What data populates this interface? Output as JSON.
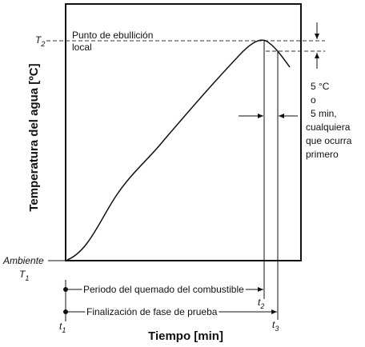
{
  "axis_labels": {
    "y": "Temperatura del agua [ºC]",
    "x": "Tiempo [min]"
  },
  "markers": {
    "t2_temp": {
      "symbol": "T",
      "sub": "2"
    },
    "ambient": {
      "label": "Ambiente",
      "symbol": "T",
      "sub": "1"
    },
    "t1_time": {
      "symbol": "t",
      "sub": "1"
    },
    "t2_time": {
      "symbol": "t",
      "sub": "2"
    },
    "t3_time": {
      "symbol": "t",
      "sub": "3"
    }
  },
  "annotations": {
    "boiling_point": [
      "Punto de ebullición",
      "local"
    ],
    "criterion": [
      "5 °C",
      "o",
      "5 min,",
      "cualquiera",
      "que ocurra",
      "primero"
    ],
    "burn_period": "Periodo del quemado del combustible",
    "test_end": "Finalización de fase de prueba"
  }
}
